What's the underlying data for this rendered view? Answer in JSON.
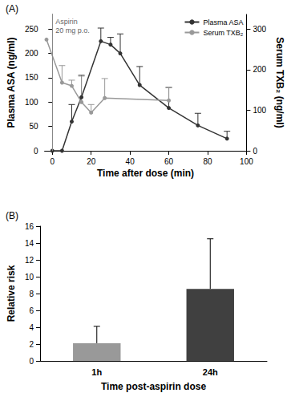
{
  "chart_data": [
    {
      "type": "line",
      "title": "(A)",
      "xlabel": "Time after dose (min)",
      "ylabel": "Plasma ASA (ng/ml)",
      "y2label": "Serum TXB₂ (ng/ml)",
      "xlim": [
        -4,
        100
      ],
      "xticks": [
        0,
        20,
        40,
        60,
        80,
        100
      ],
      "ylim": [
        0,
        280
      ],
      "yticks": [
        0,
        50,
        100,
        150,
        200,
        250
      ],
      "y2lim": [
        0,
        336
      ],
      "y2ticks": [
        0,
        100,
        200,
        300
      ],
      "grid": false,
      "legend": "upper right",
      "annotations": [
        {
          "x": 0,
          "text": "Aspirin\n20 mg p.o."
        }
      ],
      "series": [
        {
          "name": "Plasma ASA",
          "color": "#333333",
          "marker": "circle",
          "x": [
            0,
            5,
            10,
            15,
            25,
            30,
            35,
            45,
            60,
            75,
            90
          ],
          "values": [
            0,
            0,
            60,
            110,
            225,
            218,
            200,
            135,
            88,
            52,
            25
          ],
          "error": [
            null,
            null,
            35,
            45,
            27,
            15,
            40,
            38,
            42,
            25,
            15
          ]
        },
        {
          "name": "Serum TXB₂",
          "color": "#999999",
          "marker": "circle",
          "axis": "y2",
          "x": [
            -3,
            5,
            10,
            15,
            20,
            27,
            60
          ],
          "values": [
            274,
            168,
            160,
            120,
            94,
            130,
            124
          ],
          "error": [
            null,
            42,
            14,
            64,
            20,
            48,
            32
          ]
        }
      ]
    },
    {
      "type": "bar",
      "title": "(B)",
      "xlabel": "Time post-aspirin dose",
      "ylabel": "Relative risk",
      "categories": [
        "1h",
        "24h"
      ],
      "values": [
        2.1,
        8.55
      ],
      "error": [
        2.0,
        5.95
      ],
      "colors": [
        "#999999",
        "#404040"
      ],
      "ylim": [
        0,
        16
      ],
      "yticks": [
        0,
        2,
        4,
        6,
        8,
        10,
        12,
        14,
        16
      ],
      "grid": false
    }
  ]
}
